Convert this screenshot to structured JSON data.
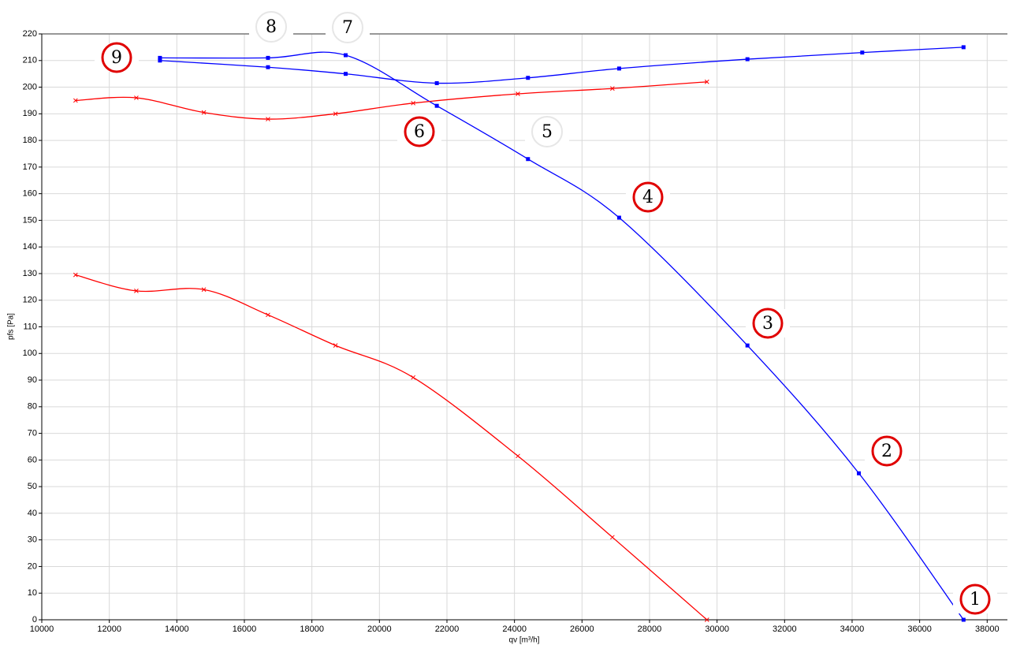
{
  "chart_data": {
    "type": "line",
    "x_label": "qv [m³/h]",
    "y_label": "pfs [Pa]",
    "xlim": [
      10000,
      38600
    ],
    "ylim": [
      0,
      220
    ],
    "xticks": [
      10000,
      12000,
      14000,
      16000,
      18000,
      20000,
      22000,
      24000,
      26000,
      28000,
      30000,
      32000,
      34000,
      36000,
      38000
    ],
    "yticks": [
      0,
      10,
      20,
      30,
      40,
      50,
      60,
      70,
      80,
      90,
      100,
      110,
      120,
      130,
      140,
      150,
      160,
      170,
      180,
      190,
      200,
      210,
      220
    ],
    "grid": true,
    "series": [
      {
        "color": "#0000ff",
        "marker": "square",
        "x": [
          13500,
          16700,
          19000,
          21700,
          24400,
          27100,
          30900,
          34200,
          37300
        ],
        "values": [
          211,
          211,
          212,
          193,
          173,
          151,
          103,
          55,
          0
        ]
      },
      {
        "color": "#0000ff",
        "marker": "square",
        "x": [
          13500,
          16700,
          19000,
          21700,
          24400,
          27100,
          30900,
          34300,
          37300
        ],
        "values": [
          210,
          207.5,
          205,
          201.5,
          203.5,
          207,
          210.5,
          213,
          215
        ]
      },
      {
        "color": "#ff0000",
        "marker": "x",
        "x": [
          11000,
          12800,
          14800,
          16700,
          18700,
          21000,
          24100,
          26900,
          29700
        ],
        "values": [
          195,
          196,
          190.5,
          188,
          190,
          194,
          197.5,
          199.5,
          202
        ]
      },
      {
        "color": "#ff0000",
        "marker": "x",
        "x": [
          11000,
          12800,
          14800,
          16700,
          18700,
          21000,
          24100,
          26900,
          29700
        ],
        "values": [
          129.5,
          123.5,
          124,
          114.5,
          103,
          91,
          61.5,
          31,
          0
        ]
      }
    ],
    "annotations": [
      "1",
      "2",
      "3",
      "4",
      "5",
      "6",
      "7",
      "8",
      "9"
    ]
  }
}
